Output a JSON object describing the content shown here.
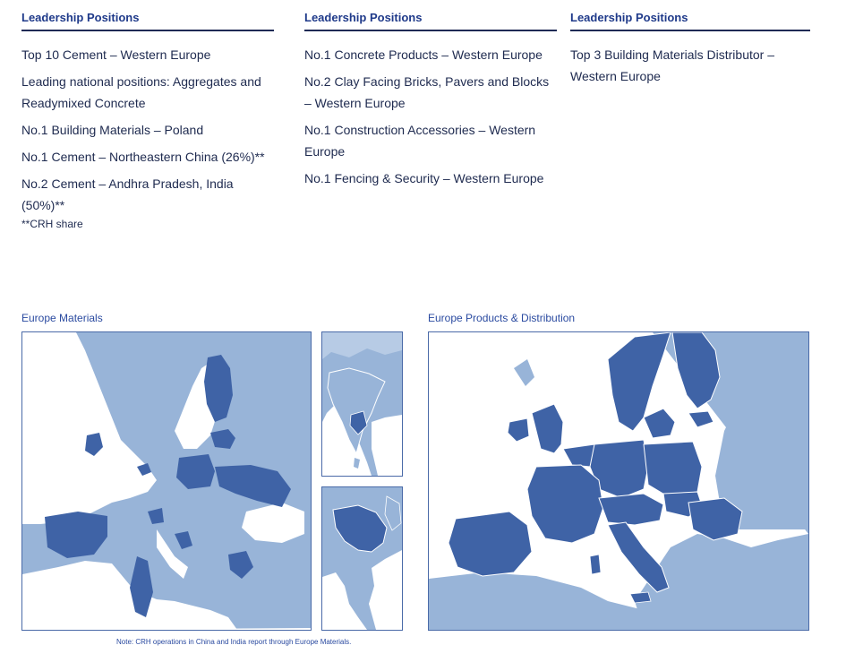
{
  "columns": [
    {
      "heading": "Leadership Positions",
      "items": [
        "Top 10 Cement – Western Europe",
        "Leading national positions: Aggregates and Readymixed Concrete",
        "No.1 Building Materials – Poland",
        "No.1 Cement – Northeastern China (26%)**",
        "No.2 Cement – Andhra Pradesh, India (50%)**"
      ],
      "note": "**CRH share"
    },
    {
      "heading": "Leadership Positions",
      "items": [
        "No.1 Concrete Products – Western Europe",
        "No.2 Clay Facing Bricks, Pavers and Blocks – Western Europe",
        "No.1 Construction Accessories – Western Europe",
        "No.1 Fencing & Security – Western Europe"
      ]
    },
    {
      "heading": "Leadership Positions",
      "items": [
        "Top 3 Building Materials Distributor – Western Europe"
      ]
    }
  ],
  "maps": {
    "europe_materials_title": "Europe Materials",
    "products_distribution_title": "Europe Products & Distribution",
    "footnote": "Note: CRH operations in China and India report through Europe Materials."
  },
  "colors": {
    "highlight": "#3f63a6",
    "land": "#98b4d8",
    "sea": "#ffffff",
    "border": "#ffffff"
  }
}
